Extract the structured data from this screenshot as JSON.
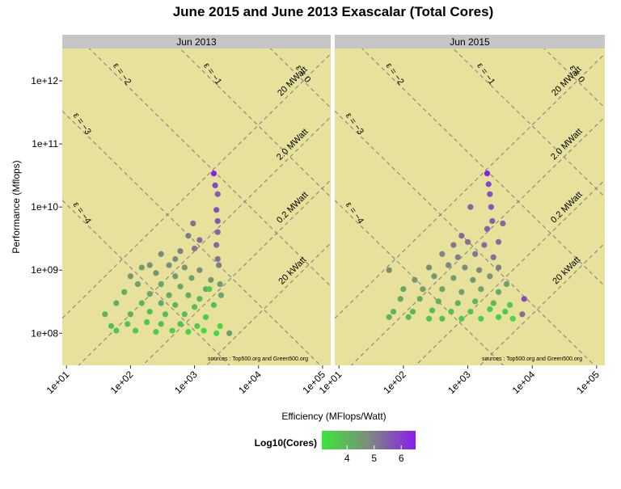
{
  "chart_data": {
    "type": "scatter",
    "title": "June 2015 and June 2013 Exascalar (Total Cores)",
    "x_label": "Efficiency (MFlops/Watt)",
    "y_label": "Performance (Mflops)",
    "log_x": true,
    "log_y": true,
    "xlim": [
      8.6,
      134000
    ],
    "ylim": [
      31000000,
      3250000000000
    ],
    "xticks": [
      {
        "value": 10,
        "label": "1e+01"
      },
      {
        "value": 100,
        "label": "1e+02"
      },
      {
        "value": 1000,
        "label": "1e+03"
      },
      {
        "value": 10000,
        "label": "1e+04"
      },
      {
        "value": 100000,
        "label": "1e+05"
      }
    ],
    "yticks": [
      {
        "value": 100000000,
        "label": "1e+08"
      },
      {
        "value": 1000000000,
        "label": "1e+09"
      },
      {
        "value": 10000000000,
        "label": "1e+10"
      },
      {
        "value": 100000000000,
        "label": "1e+11"
      },
      {
        "value": 1000000000000,
        "label": "1e+12"
      }
    ],
    "source_note": "sources : Top500.org and Green500.org",
    "color_scale": {
      "title": "Log10(Cores)",
      "colors": [
        "#3ae63a",
        "#7c8c7c",
        "#8a1cf0"
      ],
      "lim": [
        3.07,
        6.53
      ],
      "ticks": [
        4,
        5,
        6
      ]
    },
    "exascalar_lines": [
      {
        "value": 0,
        "label": "ε = 0"
      },
      {
        "value": -1,
        "label": "ε = −1"
      },
      {
        "value": -2,
        "label": "ε = −2"
      },
      {
        "value": -3,
        "label": "ε = −3"
      },
      {
        "value": -4,
        "label": "ε = −4"
      }
    ],
    "power_lines": [
      {
        "value": 20000000,
        "label": "20 MWatt"
      },
      {
        "value": 2000000,
        "label": "2.0 MWatt"
      },
      {
        "value": 200000,
        "label": "0.2 MWatt"
      },
      {
        "value": 20000,
        "label": "20 kWatt"
      }
    ],
    "panels": [
      {
        "title": "Jun 2013",
        "x": [
          2000,
          2100,
          2300,
          2200,
          2300,
          950,
          2300,
          800,
          1200,
          2200,
          600,
          1000,
          300,
          500,
          2300,
          150,
          200,
          400,
          700,
          1200,
          2400,
          100,
          250,
          500,
          900,
          1800,
          130,
          300,
          600,
          1500,
          2500,
          80,
          200,
          400,
          800,
          1200,
          2600,
          60,
          150,
          300,
          500,
          1000,
          2000,
          40,
          100,
          200,
          350,
          700,
          1500,
          50,
          90,
          180,
          300,
          600,
          1100,
          2500,
          60,
          120,
          250,
          450,
          800,
          1400,
          2200,
          3500,
          1700
        ],
        "y": [
          34000000000.0,
          22000000000.0,
          16000000000.0,
          9000000000.0,
          6000000000.0,
          5500000000.0,
          4000000000.0,
          3500000000.0,
          3000000000.0,
          2500000000.0,
          2000000000.0,
          2200000000.0,
          1800000000.0,
          1500000000.0,
          1500000000.0,
          1100000000.0,
          1200000000.0,
          1200000000.0,
          1100000000.0,
          1000000000.0,
          1200000000.0,
          800000000.0,
          900000000.0,
          800000000.0,
          750000000.0,
          700000000.0,
          600000000.0,
          600000000.0,
          550000000.0,
          500000000.0,
          600000000.0,
          450000000.0,
          420000000.0,
          400000000.0,
          400000000.0,
          350000000.0,
          400000000.0,
          300000000.0,
          300000000.0,
          300000000.0,
          280000000.0,
          260000000.0,
          280000000.0,
          200000000.0,
          200000000.0,
          220000000.0,
          200000000.0,
          200000000.0,
          180000000.0,
          130000000.0,
          140000000.0,
          150000000.0,
          140000000.0,
          140000000.0,
          130000000.0,
          130000000.0,
          110000000.0,
          110000000.0,
          105000000.0,
          110000000.0,
          105000000.0,
          110000000.0,
          100000000.0,
          100000000.0,
          500000000.0
        ],
        "cores": [
          6.5,
          5.9,
          5.5,
          5.7,
          5.6,
          5.2,
          5.4,
          5.0,
          5.3,
          5.3,
          5.0,
          5.1,
          4.9,
          4.8,
          5.2,
          4.4,
          4.7,
          4.7,
          4.6,
          4.7,
          5.0,
          4.6,
          4.6,
          4.5,
          4.4,
          4.6,
          4.4,
          4.4,
          4.3,
          4.3,
          4.5,
          4.2,
          4.3,
          4.2,
          4.1,
          4.0,
          4.3,
          4.1,
          4.0,
          4.2,
          4.0,
          3.9,
          3.8,
          4.0,
          4.1,
          3.9,
          3.9,
          3.8,
          3.6,
          3.9,
          3.8,
          3.7,
          3.8,
          3.7,
          3.6,
          3.4,
          3.7,
          3.6,
          3.6,
          3.5,
          3.4,
          3.3,
          3.3,
          4.5,
          3.5
        ]
      },
      {
        "title": "Jun 2015",
        "x": [
          2000,
          2100,
          2200,
          2300,
          1100,
          2400,
          3500,
          2000,
          800,
          600,
          1000,
          1800,
          3000,
          400,
          700,
          1300,
          2500,
          60,
          250,
          500,
          900,
          1500,
          3000,
          150,
          300,
          600,
          1200,
          2200,
          4000,
          100,
          200,
          400,
          800,
          1600,
          3000,
          7500,
          90,
          180,
          350,
          700,
          1300,
          2500,
          4500,
          70,
          140,
          280,
          550,
          1100,
          2200,
          3800,
          7000,
          120,
          250,
          400,
          800,
          1600,
          3000,
          5000,
          60
        ],
        "y": [
          34000000000.0,
          23000000000.0,
          16000000000.0,
          10000000000.0,
          10000000000.0,
          6000000000.0,
          5500000000.0,
          4500000000.0,
          3500000000.0,
          2500000000.0,
          2800000000.0,
          2500000000.0,
          2800000000.0,
          1800000000.0,
          1600000000.0,
          1800000000.0,
          1600000000.0,
          1000000000.0,
          1100000000.0,
          1200000000.0,
          1100000000.0,
          1000000000.0,
          1100000000.0,
          700000000.0,
          800000000.0,
          750000000.0,
          700000000.0,
          800000000.0,
          600000000.0,
          500000000.0,
          500000000.0,
          500000000.0,
          450000000.0,
          500000000.0,
          450000000.0,
          350000000.0,
          350000000.0,
          350000000.0,
          320000000.0,
          300000000.0,
          320000000.0,
          300000000.0,
          280000000.0,
          220000000.0,
          220000000.0,
          230000000.0,
          220000000.0,
          220000000.0,
          240000000.0,
          220000000.0,
          200000000.0,
          180000000.0,
          170000000.0,
          170000000.0,
          170000000.0,
          170000000.0,
          180000000.0,
          170000000.0,
          180000000.0
        ],
        "cores": [
          6.5,
          5.9,
          5.7,
          5.6,
          5.4,
          5.5,
          5.3,
          5.5,
          5.3,
          5.1,
          5.2,
          5.2,
          5.3,
          4.9,
          5.0,
          5.1,
          5.2,
          4.8,
          4.8,
          4.9,
          4.8,
          4.8,
          5.0,
          4.6,
          4.6,
          4.5,
          4.6,
          4.7,
          4.4,
          4.4,
          4.4,
          4.3,
          4.4,
          4.3,
          4.2,
          5.8,
          4.2,
          4.2,
          4.1,
          4.1,
          4.0,
          3.9,
          3.6,
          4.1,
          4.0,
          3.9,
          3.8,
          3.7,
          3.6,
          3.5,
          5.2,
          3.9,
          3.8,
          3.8,
          3.6,
          3.5,
          3.4,
          3.3,
          4.0
        ]
      }
    ]
  }
}
